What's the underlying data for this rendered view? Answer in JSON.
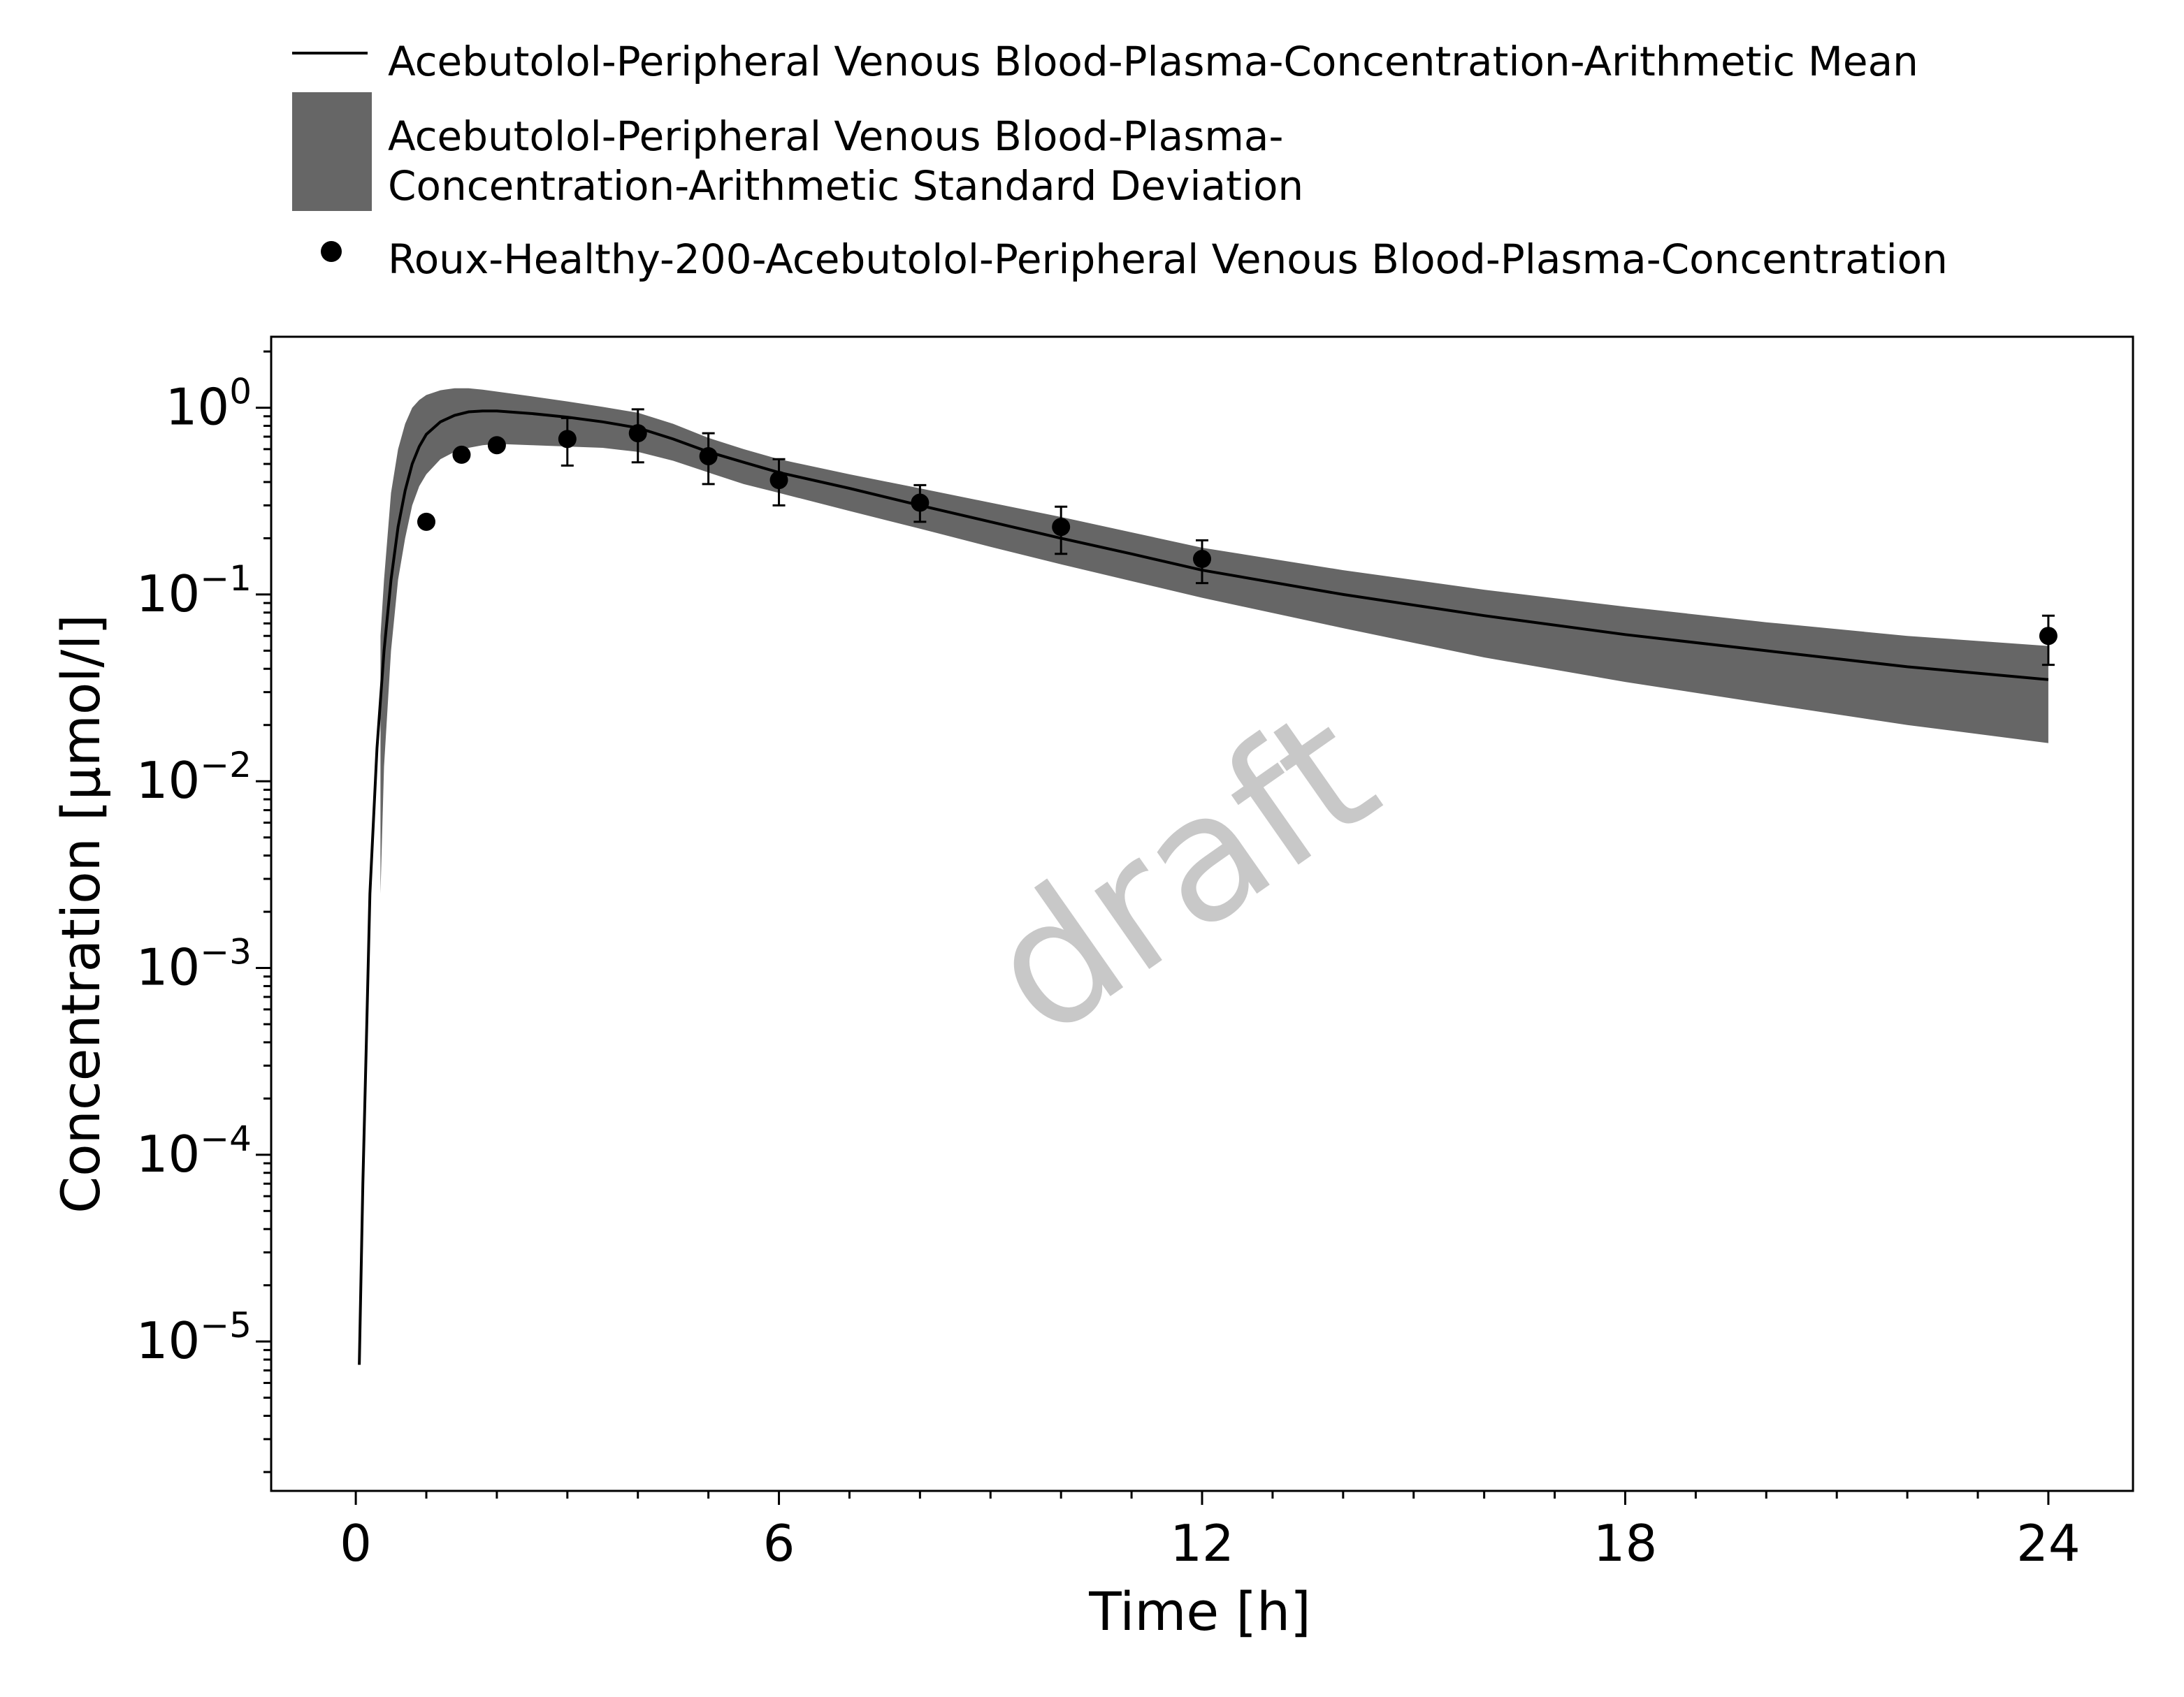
{
  "chart_data": {
    "type": "line",
    "xlabel": "Time [h]",
    "ylabel": "Concentration [µmol/l]",
    "xlim": [
      -1.2,
      25.2
    ],
    "ylim_log10": [
      -5.8,
      0.38
    ],
    "y_scale": "log",
    "x_ticks": [
      0,
      6,
      12,
      18,
      24
    ],
    "x_tick_labels": [
      "0",
      "6",
      "12",
      "18",
      "24"
    ],
    "y_ticks": [
      {
        "exp": 0,
        "base": "10",
        "sup": "0"
      },
      {
        "exp": -1,
        "base": "10",
        "sup": "−1"
      },
      {
        "exp": -2,
        "base": "10",
        "sup": "−2"
      },
      {
        "exp": -3,
        "base": "10",
        "sup": "−3"
      },
      {
        "exp": -4,
        "base": "10",
        "sup": "−4"
      },
      {
        "exp": -5,
        "base": "10",
        "sup": "−5"
      }
    ],
    "grid": false,
    "legend_position": "top",
    "watermark": "draft",
    "series": [
      {
        "name": "Acebutolol-Peripheral Venous Blood-Plasma-Concentration-Arithmetic Mean",
        "kind": "line",
        "color": "#000000",
        "x": [
          0.05,
          0.1,
          0.15,
          0.2,
          0.3,
          0.4,
          0.5,
          0.6,
          0.7,
          0.8,
          0.9,
          1.0,
          1.2,
          1.4,
          1.6,
          1.8,
          2.0,
          2.5,
          3.0,
          3.5,
          4.0,
          4.5,
          5.0,
          5.5,
          6.0,
          7.0,
          8.0,
          9.0,
          10.0,
          11.0,
          12.0,
          14.0,
          16.0,
          18.0,
          20.0,
          22.0,
          24.0
        ],
        "y": [
          7.5e-06,
          7e-05,
          0.0004,
          0.0025,
          0.015,
          0.05,
          0.12,
          0.23,
          0.36,
          0.5,
          0.62,
          0.72,
          0.84,
          0.91,
          0.95,
          0.96,
          0.96,
          0.93,
          0.89,
          0.84,
          0.78,
          0.68,
          0.58,
          0.51,
          0.45,
          0.37,
          0.3,
          0.245,
          0.2,
          0.165,
          0.135,
          0.1,
          0.077,
          0.061,
          0.05,
          0.041,
          0.035
        ]
      },
      {
        "name": "Acebutolol-Peripheral Venous Blood-Plasma-Concentration-Arithmetic Standard Deviation",
        "kind": "band",
        "color": "#666666",
        "x": [
          0.35,
          0.4,
          0.5,
          0.6,
          0.7,
          0.8,
          0.9,
          1.0,
          1.2,
          1.4,
          1.6,
          1.8,
          2.0,
          2.5,
          3.0,
          3.5,
          4.0,
          4.5,
          5.0,
          5.5,
          6.0,
          7.0,
          8.0,
          9.0,
          10.0,
          11.0,
          12.0,
          14.0,
          16.0,
          18.0,
          20.0,
          22.0,
          24.0
        ],
        "upper": [
          0.06,
          0.12,
          0.35,
          0.6,
          0.82,
          1.0,
          1.1,
          1.17,
          1.24,
          1.27,
          1.27,
          1.25,
          1.22,
          1.15,
          1.08,
          1.01,
          0.94,
          0.82,
          0.69,
          0.6,
          0.53,
          0.44,
          0.37,
          0.31,
          0.26,
          0.215,
          0.178,
          0.135,
          0.106,
          0.086,
          0.071,
          0.06,
          0.053
        ],
        "lower": [
          0.0025,
          0.012,
          0.05,
          0.12,
          0.2,
          0.3,
          0.38,
          0.44,
          0.53,
          0.58,
          0.61,
          0.63,
          0.64,
          0.63,
          0.62,
          0.61,
          0.58,
          0.52,
          0.45,
          0.39,
          0.35,
          0.28,
          0.225,
          0.18,
          0.145,
          0.118,
          0.096,
          0.066,
          0.046,
          0.034,
          0.026,
          0.02,
          0.016
        ]
      },
      {
        "name": "Roux-Healthy-200-Acebutolol-Peripheral Venous Blood-Plasma-Concentration",
        "kind": "scatter",
        "color": "#000000",
        "points": [
          {
            "x": 1.0,
            "y": 0.245
          },
          {
            "x": 1.5,
            "y": 0.56
          },
          {
            "x": 2.0,
            "y": 0.63
          },
          {
            "x": 3.0,
            "y": 0.68,
            "lo": 0.49,
            "hi": 0.88
          },
          {
            "x": 4.0,
            "y": 0.73,
            "lo": 0.51,
            "hi": 0.98
          },
          {
            "x": 5.0,
            "y": 0.55,
            "lo": 0.39,
            "hi": 0.73
          },
          {
            "x": 6.0,
            "y": 0.41,
            "lo": 0.3,
            "hi": 0.53
          },
          {
            "x": 8.0,
            "y": 0.31,
            "lo": 0.245,
            "hi": 0.385
          },
          {
            "x": 10.0,
            "y": 0.23,
            "lo": 0.165,
            "hi": 0.295
          },
          {
            "x": 12.0,
            "y": 0.155,
            "lo": 0.115,
            "hi": 0.195
          },
          {
            "x": 24.0,
            "y": 0.06,
            "lo": 0.042,
            "hi": 0.077
          }
        ]
      }
    ]
  }
}
